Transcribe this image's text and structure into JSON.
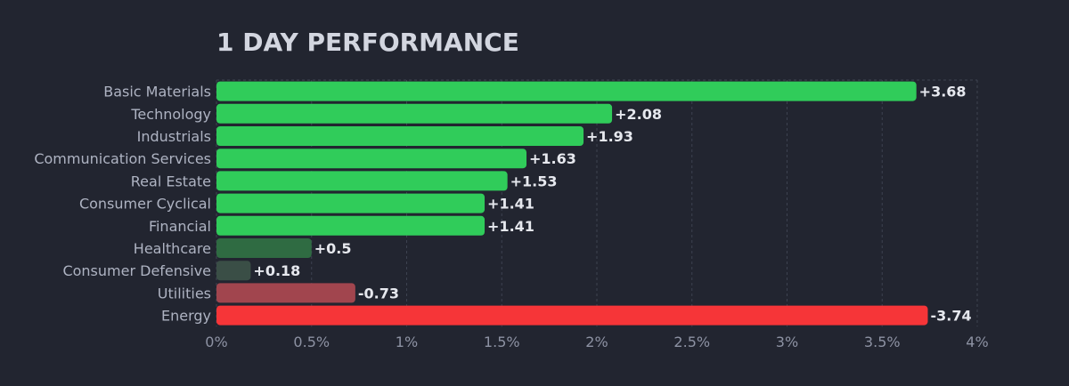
{
  "chart_data": {
    "type": "bar",
    "orientation": "horizontal",
    "title": "1 DAY PERFORMANCE",
    "categories": [
      "Basic Materials",
      "Technology",
      "Industrials",
      "Communication Services",
      "Real Estate",
      "Consumer Cyclical",
      "Financial",
      "Healthcare",
      "Consumer Defensive",
      "Utilities",
      "Energy"
    ],
    "values": [
      3.68,
      2.08,
      1.93,
      1.63,
      1.53,
      1.41,
      1.41,
      0.5,
      0.18,
      -0.73,
      -3.74
    ],
    "value_labels": [
      "+3.68",
      "+2.08",
      "+1.93",
      "+1.63",
      "+1.53",
      "+1.41",
      "+1.41",
      "+0.5",
      "+0.18",
      "-0.73",
      "-3.74"
    ],
    "bar_length_basis": "absolute value",
    "xlim": [
      0,
      4
    ],
    "x_ticks": [
      0,
      0.5,
      1,
      1.5,
      2,
      2.5,
      3,
      3.5,
      4
    ],
    "x_tick_labels": [
      "0%",
      "0.5%",
      "1%",
      "1.5%",
      "2%",
      "2.5%",
      "3%",
      "3.5%",
      "4%"
    ],
    "xlabel": "",
    "ylabel": "",
    "grid": "vertical dashed",
    "legend": "none"
  },
  "colors": {
    "background": "#222530",
    "title": "#d3d6e0",
    "category_label": "#aeb3c2",
    "tick_label": "#8d92a3",
    "value_label": "#e6e8ee",
    "grid": "#3d4250",
    "positive_strong": "#30cc5a",
    "positive_weak": "#2f6b42",
    "neutral_positive": "#3a4e46",
    "negative_weak": "#a1454e",
    "negative_strong": "#f63538"
  }
}
